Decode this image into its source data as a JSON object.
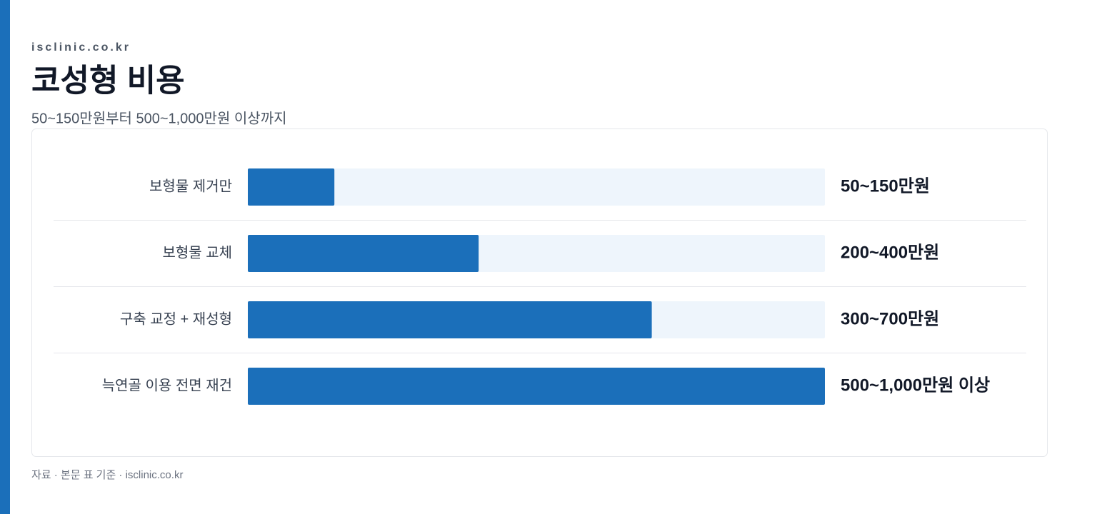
{
  "chart_data": {
    "type": "bar",
    "orientation": "horizontal",
    "site": "isclinic.co.kr",
    "title": "코성형 비용",
    "subtitle": "50~150만원부터 500~1,000만원 이상까지",
    "source": "자료 · 본문 표 기준 · isclinic.co.kr",
    "categories": [
      "보형물 제거만",
      "보형물 교체",
      "구축 교정 + 재성형",
      "늑연골 이용 전면 재건"
    ],
    "values": [
      150,
      400,
      700,
      1000
    ],
    "value_labels": [
      "50~150만원",
      "200~400만원",
      "300~700만원",
      "500~1,000만원 이상"
    ],
    "color": "#1b6fba",
    "track_color": "#eef5fc",
    "xlim": [
      0,
      1000
    ]
  }
}
